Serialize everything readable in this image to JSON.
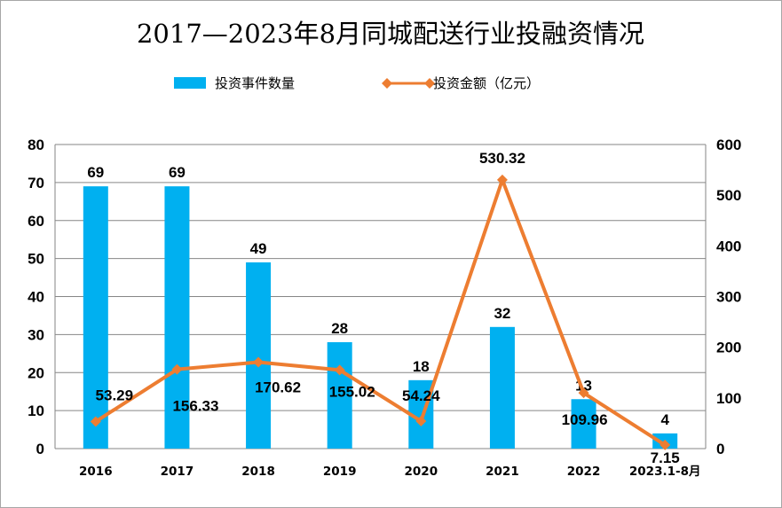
{
  "chart_data": {
    "type": "bar+line",
    "title": "2017—2023年8月同城配送行业投融资情况",
    "categories": [
      "2016",
      "2017",
      "2018",
      "2019",
      "2020",
      "2021",
      "2022",
      "2023.1-8月"
    ],
    "series": [
      {
        "name": "投资事件数量",
        "type": "bar",
        "axis": "left",
        "color": "#00b0f0",
        "values": [
          69,
          69,
          49,
          28,
          18,
          32,
          13,
          4
        ]
      },
      {
        "name": "投资金额（亿元）",
        "type": "line",
        "axis": "right",
        "color": "#ed7d31",
        "marker": "diamond",
        "values": [
          53.29,
          156.33,
          170.62,
          155.02,
          54.24,
          530.32,
          109.96,
          7.15
        ]
      }
    ],
    "ylim_left": [
      0,
      80
    ],
    "yticks_left": [
      0,
      10,
      20,
      30,
      40,
      50,
      60,
      70,
      80
    ],
    "ylim_right": [
      0,
      600
    ],
    "yticks_right": [
      0,
      100,
      200,
      300,
      400,
      500,
      600
    ],
    "grid": true,
    "legend": "top"
  }
}
